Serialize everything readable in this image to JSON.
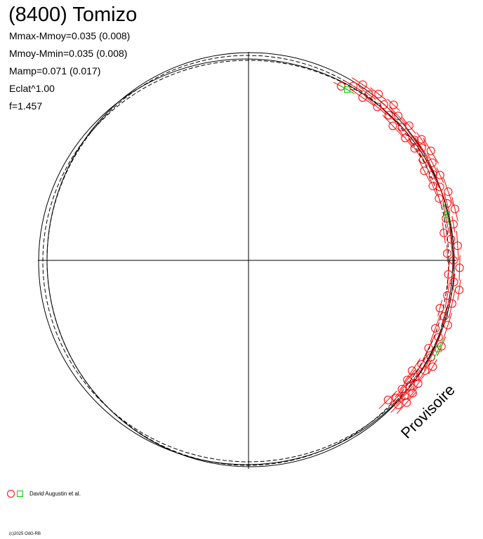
{
  "header": {
    "title": "(8400) Tomizo",
    "stats": [
      "Mmax-Mmoy=0.035 (0.008)",
      "Mmoy-Mmin=0.035 (0.008)",
      "Mamp=0.071 (0.017)",
      "Eclat^1.00",
      "f=1.457"
    ]
  },
  "watermark": "Provisoire",
  "legend": {
    "label": "David Augustin et al."
  },
  "copyright": "(c)2025 OdG-RB",
  "colors": {
    "red_series": "#ff0000",
    "green_series": "#00cc00",
    "curves": "#000000"
  },
  "chart_data": {
    "type": "scatter",
    "projection": "polar",
    "mean_radius": 1.0,
    "amplitude": {
      "max_minus_mean": 0.035,
      "mean_minus_min": 0.035
    },
    "reference_curves": [
      "solid",
      "solid",
      "dashed",
      "dashed"
    ],
    "series": [
      {
        "marker": "circle",
        "color": "#ff0000",
        "points_deg": [
          62,
          59,
          57,
          55,
          54,
          52,
          50,
          49,
          47,
          46,
          44,
          43,
          41,
          40,
          38,
          36,
          35,
          34,
          33,
          31,
          30,
          28,
          27,
          25,
          24,
          22,
          21,
          19,
          18,
          16,
          14,
          12,
          10,
          8,
          6,
          4,
          2,
          0,
          -2,
          -4,
          -6,
          -8,
          -10,
          -12,
          -14,
          -16,
          -18,
          -20,
          -22,
          -24,
          -26,
          -28,
          -30,
          -31,
          -32,
          -34,
          -35,
          -36,
          -37,
          -38,
          -39,
          -40,
          -41,
          -42,
          -43,
          -44,
          -45
        ]
      },
      {
        "marker": "square",
        "color": "#00cc00",
        "points_deg": [
          60,
          13,
          -25
        ]
      }
    ]
  }
}
